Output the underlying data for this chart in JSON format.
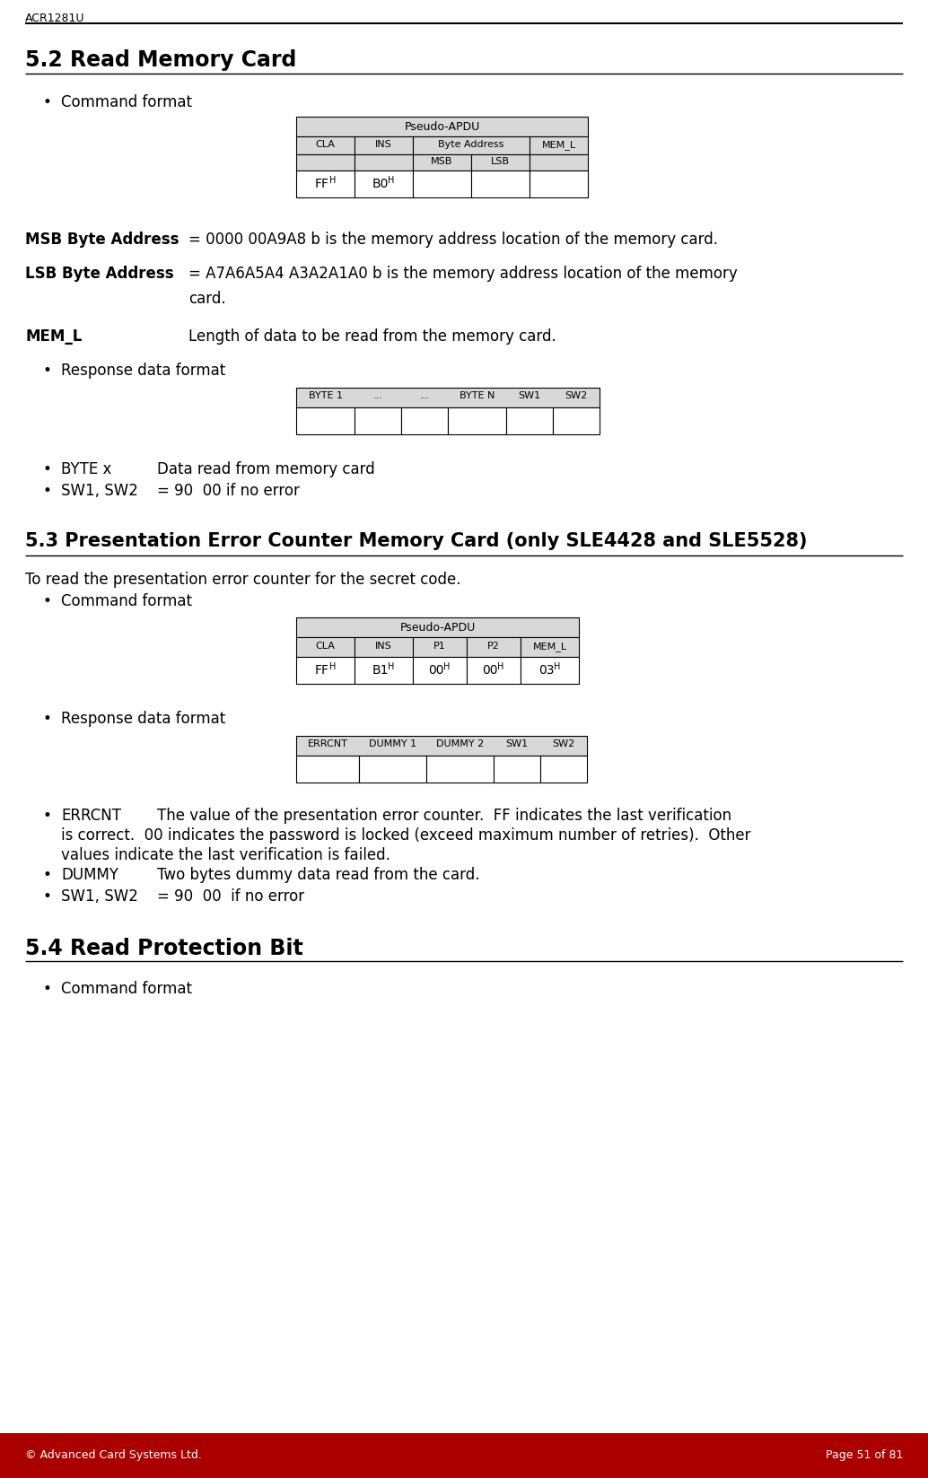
{
  "page_title": "ACR1281U",
  "footer_left": "© Advanced Card Systems Ltd.",
  "footer_right": "Page 51 of 81",
  "footer_bg": "#AA0000",
  "section_52_title": "5.2 Read Memory Card",
  "section_53_title": "5.3 Presentation Error Counter Memory Card (only SLE4428 and SLE5528)",
  "section_54_title": "5.4 Read Protection Bit",
  "bg_color": "#ffffff",
  "table_header_bg": "#d8d8d8",
  "table_cell_bg": "#ffffff",
  "table_border": "#000000"
}
